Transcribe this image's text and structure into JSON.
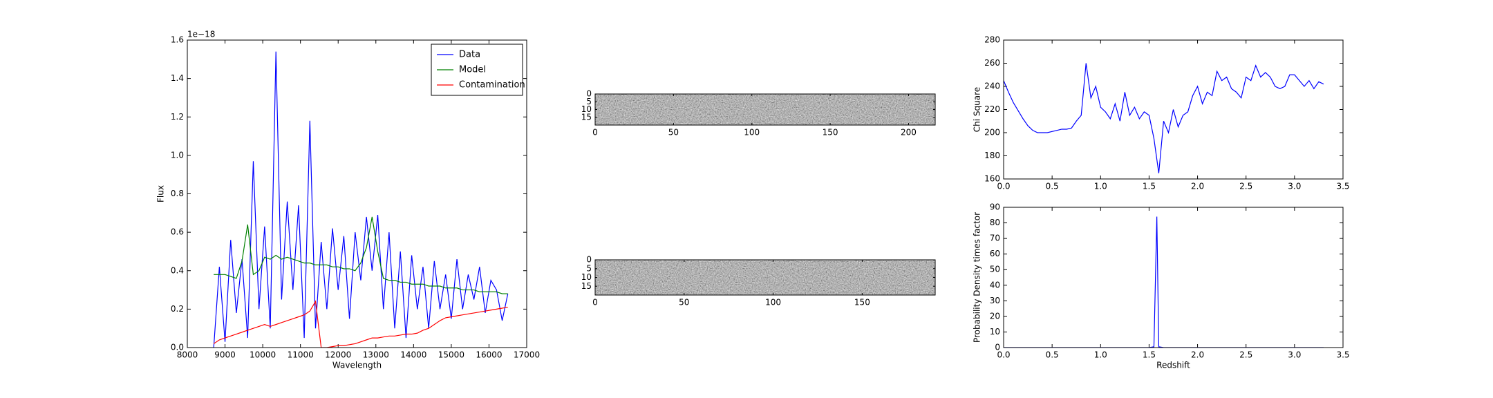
{
  "chart_data": [
    {
      "type": "line",
      "xlabel": "Wavelength",
      "ylabel": "Flux",
      "y_offset_label": "1e−18",
      "xlim": [
        8000,
        17000
      ],
      "xticks": [
        8000,
        9000,
        10000,
        11000,
        12000,
        13000,
        14000,
        15000,
        16000,
        17000
      ],
      "ylim": [
        0,
        1.6
      ],
      "yticks": [
        {
          "value": 0,
          "label": "0.0"
        },
        0.2,
        0.4,
        0.6,
        0.8,
        {
          "value": 1,
          "label": "1.0"
        },
        1.2,
        1.4,
        1.6
      ],
      "legend": "upper right",
      "x": [
        8700,
        8850,
        9000,
        9150,
        9300,
        9450,
        9600,
        9750,
        9900,
        10050,
        10200,
        10350,
        10500,
        10650,
        10800,
        10950,
        11100,
        11250,
        11400,
        11550,
        11700,
        11850,
        12000,
        12150,
        12300,
        12450,
        12600,
        12750,
        12900,
        13050,
        13200,
        13350,
        13500,
        13650,
        13800,
        13950,
        14100,
        14250,
        14400,
        14550,
        14700,
        14850,
        15000,
        15150,
        15300,
        15450,
        15600,
        15750,
        15900,
        16050,
        16200,
        16350,
        16500
      ],
      "series": [
        {
          "name": "Data",
          "color": "#0000ff",
          "values": [
            0.0,
            0.42,
            0.03,
            0.56,
            0.18,
            0.46,
            0.05,
            0.97,
            0.2,
            0.63,
            0.1,
            1.54,
            0.25,
            0.76,
            0.3,
            0.74,
            0.05,
            1.18,
            0.1,
            0.55,
            0.2,
            0.62,
            0.3,
            0.58,
            0.15,
            0.6,
            0.35,
            0.68,
            0.4,
            0.69,
            0.2,
            0.6,
            0.1,
            0.5,
            0.05,
            0.48,
            0.2,
            0.42,
            0.1,
            0.45,
            0.2,
            0.38,
            0.15,
            0.46,
            0.2,
            0.38,
            0.25,
            0.42,
            0.18,
            0.35,
            0.3,
            0.14,
            0.28
          ]
        },
        {
          "name": "Model",
          "color": "#008000",
          "values": [
            0.38,
            0.38,
            0.38,
            0.37,
            0.36,
            0.45,
            0.64,
            0.38,
            0.4,
            0.47,
            0.46,
            0.48,
            0.46,
            0.47,
            0.46,
            0.45,
            0.44,
            0.44,
            0.43,
            0.43,
            0.43,
            0.42,
            0.42,
            0.41,
            0.41,
            0.4,
            0.44,
            0.52,
            0.68,
            0.5,
            0.36,
            0.35,
            0.35,
            0.34,
            0.34,
            0.33,
            0.33,
            0.33,
            0.32,
            0.32,
            0.32,
            0.31,
            0.31,
            0.31,
            0.3,
            0.3,
            0.3,
            0.29,
            0.29,
            0.29,
            0.29,
            0.28,
            0.28
          ]
        },
        {
          "name": "Contamination",
          "color": "#ff0000",
          "values": [
            0.02,
            0.04,
            0.05,
            0.06,
            0.07,
            0.08,
            0.09,
            0.1,
            0.11,
            0.12,
            0.11,
            0.12,
            0.13,
            0.14,
            0.15,
            0.16,
            0.17,
            0.19,
            0.24,
            0.0,
            0.0,
            0.005,
            0.01,
            0.01,
            0.015,
            0.02,
            0.03,
            0.04,
            0.05,
            0.05,
            0.055,
            0.06,
            0.06,
            0.065,
            0.07,
            0.07,
            0.075,
            0.09,
            0.1,
            0.12,
            0.14,
            0.155,
            0.16,
            0.165,
            0.17,
            0.175,
            0.18,
            0.185,
            0.19,
            0.195,
            0.2,
            0.205,
            0.21
          ]
        }
      ]
    },
    {
      "type": "image",
      "xlim": [
        0,
        217
      ],
      "xticks": [
        0,
        50,
        100,
        150,
        200
      ],
      "ylim": [
        0,
        20
      ],
      "invert_y": true,
      "yticks": [
        0,
        5,
        10,
        15
      ]
    },
    {
      "type": "image",
      "xlim": [
        0,
        191
      ],
      "xticks": [
        0,
        50,
        100,
        150
      ],
      "ylim": [
        0,
        20
      ],
      "invert_y": true,
      "yticks": [
        0,
        5,
        10,
        15
      ]
    },
    {
      "type": "line",
      "ylabel": "Chi Square",
      "xlim": [
        0,
        3.5
      ],
      "xticks": [
        {
          "value": 0,
          "label": "0.0"
        },
        0.5,
        {
          "value": 1,
          "label": "1.0"
        },
        1.5,
        {
          "value": 2,
          "label": "2.0"
        },
        2.5,
        {
          "value": 3,
          "label": "3.0"
        },
        3.5
      ],
      "ylim": [
        160,
        280
      ],
      "yticks": [
        160,
        180,
        200,
        220,
        240,
        260,
        280
      ],
      "x": [
        0,
        0.05,
        0.1,
        0.15,
        0.2,
        0.25,
        0.3,
        0.35,
        0.4,
        0.45,
        0.5,
        0.55,
        0.6,
        0.65,
        0.7,
        0.75,
        0.8,
        0.85,
        0.9,
        0.95,
        1,
        1.05,
        1.1,
        1.15,
        1.2,
        1.25,
        1.3,
        1.35,
        1.4,
        1.45,
        1.5,
        1.55,
        1.6,
        1.65,
        1.7,
        1.75,
        1.8,
        1.85,
        1.9,
        1.95,
        2,
        2.05,
        2.1,
        2.15,
        2.2,
        2.25,
        2.3,
        2.35,
        2.4,
        2.45,
        2.5,
        2.55,
        2.6,
        2.65,
        2.7,
        2.75,
        2.8,
        2.85,
        2.9,
        2.95,
        3,
        3.05,
        3.1,
        3.15,
        3.2,
        3.25,
        3.3
      ],
      "color": "#0000ff",
      "values": [
        245,
        235,
        226,
        219,
        212,
        206,
        202,
        200,
        200,
        200,
        201,
        202,
        203,
        203,
        204,
        210,
        215,
        260,
        230,
        240,
        222,
        218,
        212,
        225,
        210,
        235,
        215,
        222,
        212,
        218,
        215,
        195,
        165,
        210,
        200,
        220,
        205,
        215,
        218,
        232,
        240,
        225,
        235,
        232,
        253,
        245,
        248,
        238,
        235,
        230,
        248,
        245,
        258,
        248,
        252,
        248,
        240,
        238,
        240,
        250,
        250,
        245,
        240,
        245,
        238,
        244,
        242
      ]
    },
    {
      "type": "line",
      "xlabel": "Redshift",
      "ylabel": "Probability Density times factor",
      "xlim": [
        0,
        3.5
      ],
      "xticks": [
        {
          "value": 0,
          "label": "0.0"
        },
        0.5,
        {
          "value": 1,
          "label": "1.0"
        },
        1.5,
        {
          "value": 2,
          "label": "2.0"
        },
        2.5,
        {
          "value": 3,
          "label": "3.0"
        },
        3.5
      ],
      "ylim": [
        0,
        90
      ],
      "yticks": [
        0,
        10,
        20,
        30,
        40,
        50,
        60,
        70,
        80,
        90
      ],
      "x": [
        0,
        1.5,
        1.55,
        1.58,
        1.6,
        1.65,
        3.3
      ],
      "color": "#0000ff",
      "values": [
        0,
        0,
        0.5,
        84,
        0.5,
        0,
        0
      ]
    }
  ]
}
